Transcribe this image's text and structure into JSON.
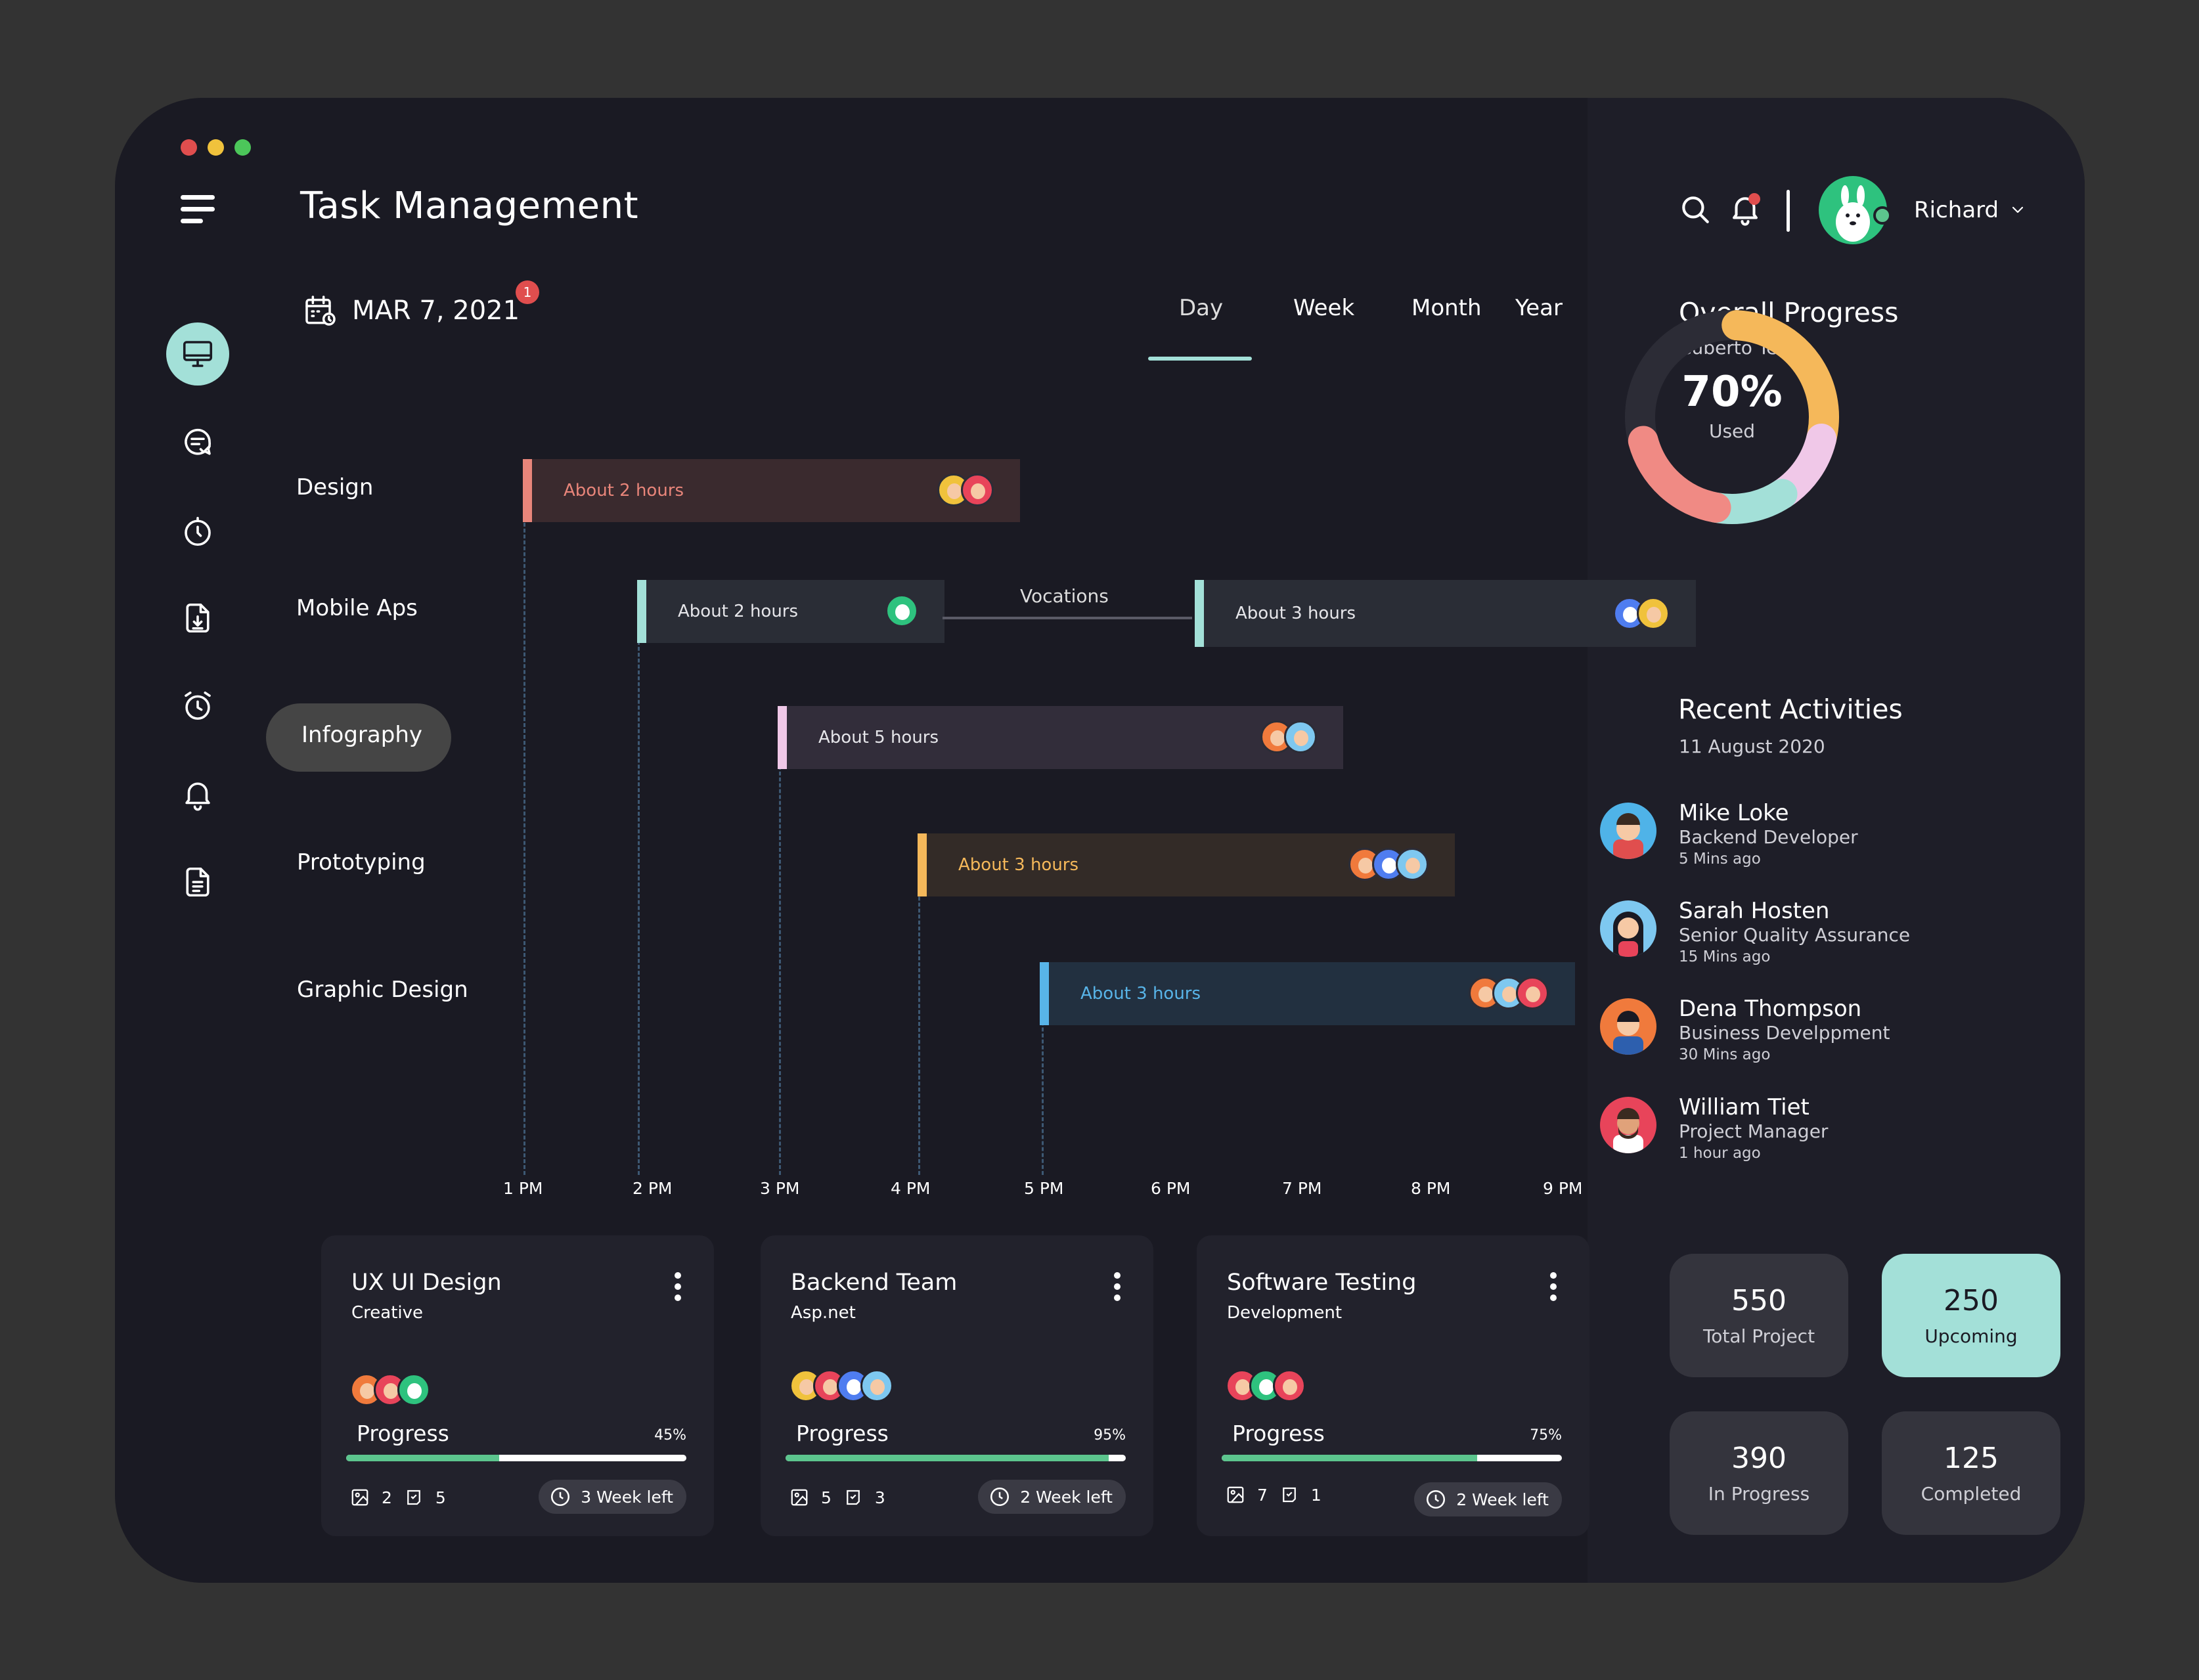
{
  "app": {
    "title": "Task Management",
    "window_dots": [
      "#e04e4e",
      "#f0c23c",
      "#4cc65a"
    ]
  },
  "sidebar": {
    "items": [
      {
        "icon": "monitor-icon",
        "active": true
      },
      {
        "icon": "chat-icon",
        "active": false
      },
      {
        "icon": "timer-icon",
        "active": false
      },
      {
        "icon": "download-file-icon",
        "active": false
      },
      {
        "icon": "alarm-icon",
        "active": false
      },
      {
        "icon": "bell-icon",
        "active": false
      },
      {
        "icon": "document-icon",
        "active": false
      }
    ]
  },
  "date": {
    "label": "MAR 7, 2021",
    "badge": "1"
  },
  "tabs": [
    {
      "label": "Day",
      "active": true
    },
    {
      "label": "Week",
      "active": false
    },
    {
      "label": "Month",
      "active": false
    },
    {
      "label": "Year",
      "active": false
    }
  ],
  "gantt": {
    "rows": [
      {
        "label": "Design",
        "selected": false
      },
      {
        "label": "Mobile Aps",
        "selected": false
      },
      {
        "label": "Infography",
        "selected": true
      },
      {
        "label": "Prototyping",
        "selected": false
      },
      {
        "label": "Graphic Design",
        "selected": false
      }
    ],
    "ticks": [
      "1 PM",
      "2 PM",
      "3 PM",
      "4 PM",
      "5 PM",
      "6 PM",
      "7 PM",
      "8 PM",
      "9 PM"
    ],
    "bars": [
      {
        "row": 0,
        "label": "About 2 hours",
        "accent": "#e8857a",
        "bg": "#3a2a2e",
        "text": "#e8857a",
        "avatars": 2
      },
      {
        "row": 1,
        "label": "About 2 hours",
        "accent": "#a3e0d8",
        "bg": "#2a2d36",
        "text": "#e6e6ea",
        "avatars": 1
      },
      {
        "row": 1,
        "label": "About 3 hours",
        "accent": "#a3e0d8",
        "bg": "#2a2d36",
        "text": "#e6e6ea",
        "avatars": 2
      },
      {
        "row": 2,
        "label": "About 5 hours",
        "accent": "#f0c8e8",
        "bg": "#322d3a",
        "text": "#e6e6ea",
        "avatars": 2
      },
      {
        "row": 3,
        "label": "About 3 hours",
        "accent": "#f5b85a",
        "bg": "#332b27",
        "text": "#f5b85a",
        "avatars": 3
      },
      {
        "row": 4,
        "label": "About 3 hours",
        "accent": "#58b4e8",
        "bg": "#223040",
        "text": "#58b4e8",
        "avatars": 3
      }
    ],
    "gap_label": "Vocations"
  },
  "cards": [
    {
      "title": "UX UI Design",
      "subtitle": "Creative",
      "progress_label": "Progress",
      "progress": 45,
      "progress_text": "45%",
      "images": "2",
      "tasks": "5",
      "deadline": "3 Week left"
    },
    {
      "title": "Backend Team",
      "subtitle": "Asp.net",
      "progress_label": "Progress",
      "progress": 95,
      "progress_text": "95%",
      "images": "5",
      "tasks": "3",
      "deadline": "2 Week left"
    },
    {
      "title": "Software Testing",
      "subtitle": "Development",
      "progress_label": "Progress",
      "progress": 75,
      "progress_text": "75%",
      "images": "7",
      "tasks": "1",
      "deadline": "2 Week left"
    }
  ],
  "header": {
    "user_name": "Richard",
    "notifications": true
  },
  "overall_progress": {
    "title": "Overall Progress",
    "subtitle": "Cuberto Team",
    "percent_text": "70%",
    "used_label": "Used",
    "segments": [
      {
        "color": "#f5b85a",
        "share": 0.28
      },
      {
        "color": "#f0c8e8",
        "share": 0.12
      },
      {
        "color": "#a3e0d8",
        "share": 0.12
      },
      {
        "color": "#f08a84",
        "share": 0.18
      }
    ]
  },
  "recent_activities": {
    "title": "Recent Activities",
    "date": "11 August 2020",
    "items": [
      {
        "name": "Mike Loke",
        "role": "Backend Developer",
        "time": "5 Mins ago",
        "bg": "#4fb3e8"
      },
      {
        "name": "Sarah Hosten",
        "role": "Senior Quality Assurance",
        "time": "15 Mins ago",
        "bg": "#7ec8f0"
      },
      {
        "name": "Dena Thompson",
        "role": "Business Develppment",
        "time": "30 Mins ago",
        "bg": "#f07a3c"
      },
      {
        "name": "William Tiet",
        "role": "Project Manager",
        "time": "1 hour ago",
        "bg": "#e8445a"
      }
    ]
  },
  "stats": [
    {
      "value": "550",
      "label": "Total Project",
      "highlight": false
    },
    {
      "value": "250",
      "label": "Upcoming",
      "highlight": true
    },
    {
      "value": "390",
      "label": "In Progress",
      "highlight": false
    },
    {
      "value": "125",
      "label": "Completed",
      "highlight": false
    }
  ]
}
